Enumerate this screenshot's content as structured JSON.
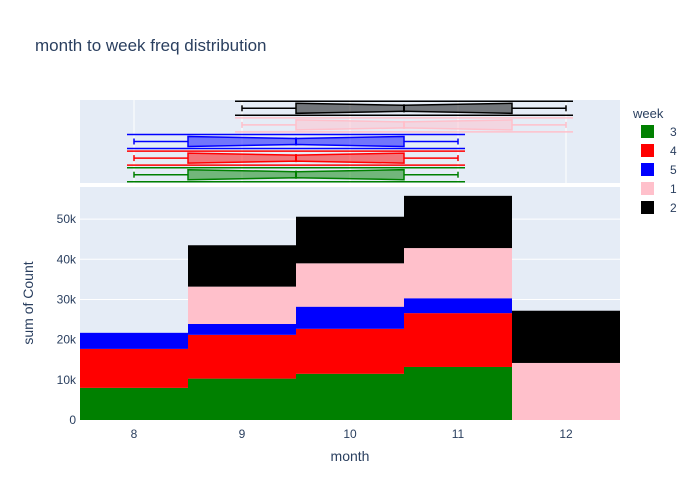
{
  "colors": {
    "background": "#ffffff",
    "plot_background": "#e5ecf6",
    "grid": "#ffffff",
    "text": "#2a3f5f"
  },
  "chart_data": {
    "type": "bar",
    "barmode": "stack",
    "title": "month to week freq distribution",
    "xlabel": "month",
    "ylabel": "sum of Count",
    "categories": [
      "8",
      "9",
      "10",
      "11",
      "12"
    ],
    "ylim": [
      0,
      58000
    ],
    "yticks": [
      0,
      10000,
      20000,
      30000,
      40000,
      50000
    ],
    "ytick_labels": [
      "0",
      "10k",
      "20k",
      "30k",
      "40k",
      "50k"
    ],
    "grid": true,
    "legend": {
      "title": "week",
      "placement": "top-right",
      "entries": [
        "3",
        "4",
        "5",
        "1",
        "2"
      ]
    },
    "series": [
      {
        "name": "3",
        "color": "#008000",
        "values": [
          8000,
          10300,
          11500,
          13200,
          0
        ]
      },
      {
        "name": "4",
        "color": "#ff0000",
        "values": [
          9700,
          10900,
          11200,
          13400,
          0
        ]
      },
      {
        "name": "5",
        "color": "#0000ff",
        "values": [
          4000,
          2700,
          5500,
          3700,
          0
        ]
      },
      {
        "name": "1",
        "color": "#ffc0cb",
        "values": [
          0,
          9300,
          10800,
          12500,
          14200
        ]
      },
      {
        "name": "2",
        "color": "#000000",
        "values": [
          0,
          10300,
          11600,
          13000,
          13000
        ]
      }
    ],
    "marginal": {
      "type": "box",
      "orientation": "horizontal",
      "boxes": [
        {
          "name": "3",
          "color": "#008000",
          "min": 8,
          "q1": 8.5,
          "median": 9.5,
          "q3": 10.5,
          "max": 11
        },
        {
          "name": "4",
          "color": "#ff0000",
          "min": 8,
          "q1": 8.5,
          "median": 9.5,
          "q3": 10.5,
          "max": 11
        },
        {
          "name": "5",
          "color": "#0000ff",
          "min": 8,
          "q1": 8.5,
          "median": 9.5,
          "q3": 10.5,
          "max": 11
        },
        {
          "name": "1",
          "color": "#ffc0cb",
          "min": 9,
          "q1": 9.5,
          "median": 10.5,
          "q3": 11.5,
          "max": 12
        },
        {
          "name": "2",
          "color": "#000000",
          "min": 9,
          "q1": 9.5,
          "median": 10.5,
          "q3": 11.5,
          "max": 12
        }
      ]
    }
  }
}
